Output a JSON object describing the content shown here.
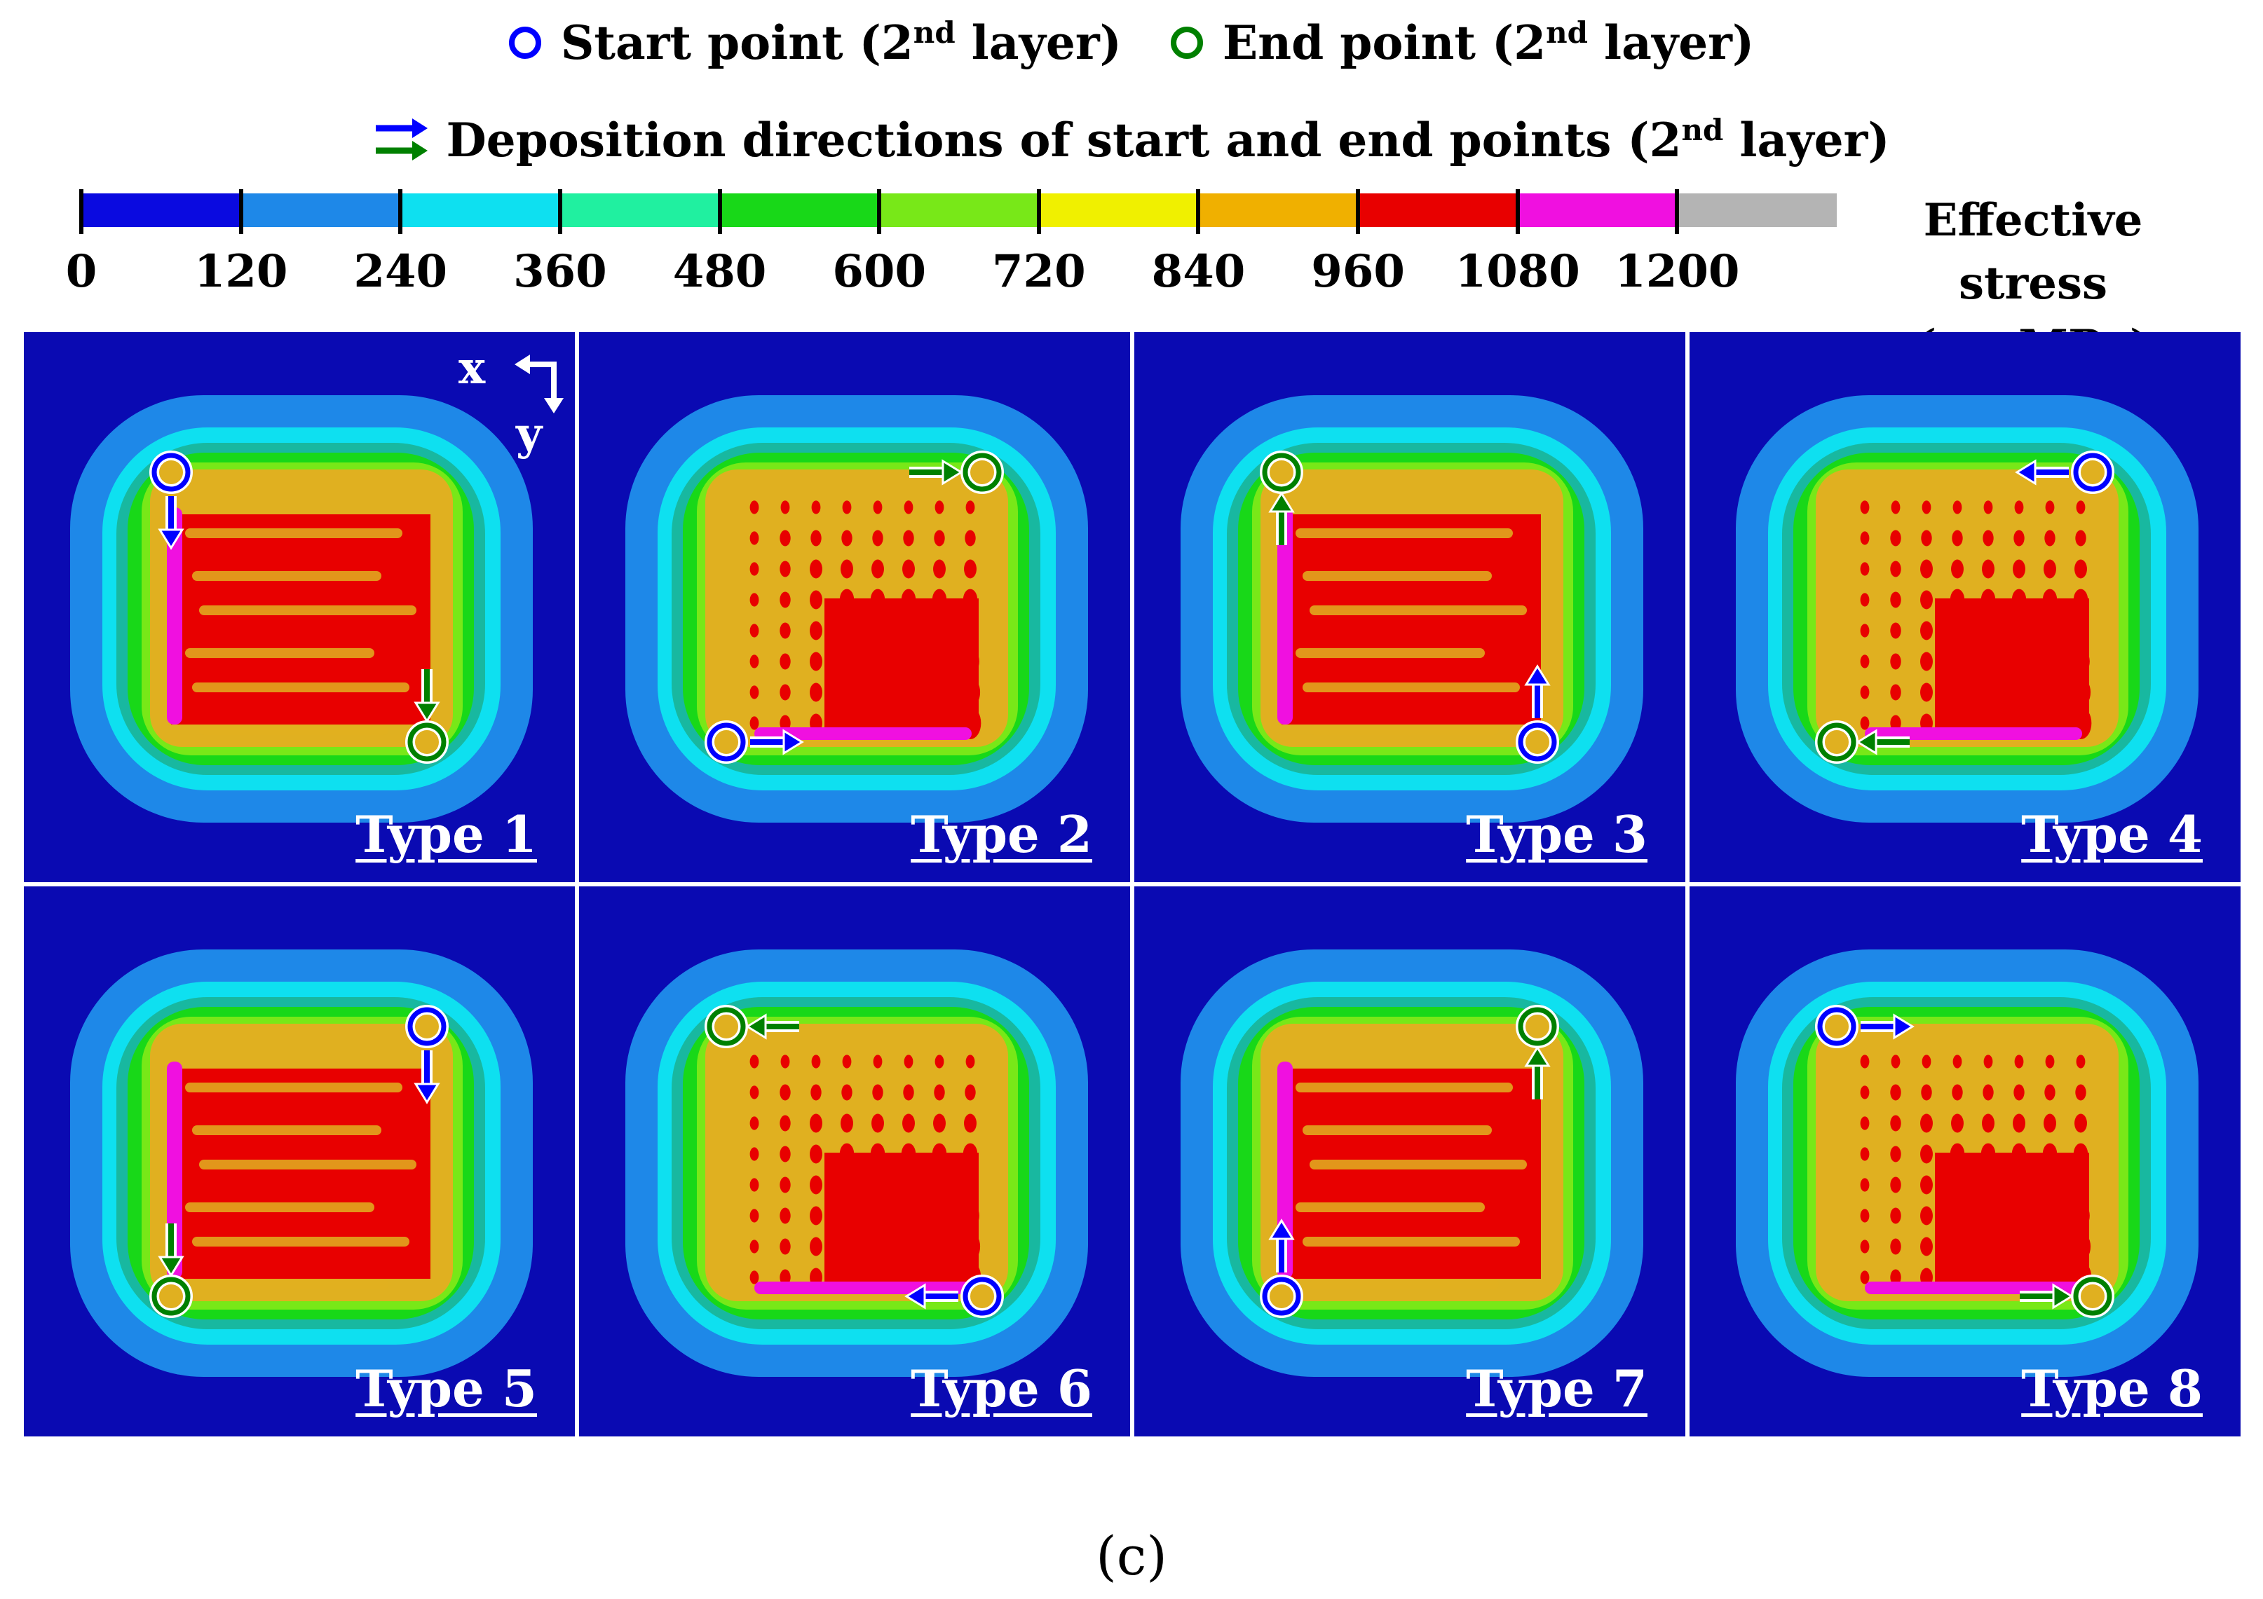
{
  "legend": {
    "start_text": "Start point (2",
    "end_text": "End point (2",
    "nd": "nd",
    "layer_suffix": " layer)",
    "direction_text": "Deposition directions of start and end points (2",
    "start_color": "#0000ff",
    "end_color": "#008000"
  },
  "colorbar": {
    "title_line1": "Effective stress",
    "title_sigma": "(σ",
    "title_sub": "e",
    "title_unit": ", MPa)",
    "ticks": [
      "0",
      "120",
      "240",
      "360",
      "480",
      "600",
      "720",
      "840",
      "960",
      "1080",
      "1200"
    ],
    "colors": [
      "#0a0ae0",
      "#1e88e8",
      "#0ee0f0",
      "#20f0a0",
      "#18d818",
      "#78e818",
      "#f0f000",
      "#f0b000",
      "#e80000",
      "#f010e0",
      "#b4b4b4"
    ]
  },
  "axes": {
    "x_label": "x",
    "y_label": "y"
  },
  "panels": [
    {
      "label": "Type 1",
      "start": "top-left",
      "start_dir": "down",
      "end": "bottom-right",
      "end_dir": "down",
      "pattern": "horizontal"
    },
    {
      "label": "Type 2",
      "start": "bottom-left",
      "start_dir": "right",
      "end": "top-right",
      "end_dir": "right",
      "pattern": "dots"
    },
    {
      "label": "Type 3",
      "start": "bottom-right",
      "start_dir": "up",
      "end": "top-left",
      "end_dir": "up",
      "pattern": "horizontal"
    },
    {
      "label": "Type 4",
      "start": "top-right",
      "start_dir": "left",
      "end": "bottom-left",
      "end_dir": "left",
      "pattern": "dots"
    },
    {
      "label": "Type 5",
      "start": "top-right",
      "start_dir": "down",
      "end": "bottom-left",
      "end_dir": "down",
      "pattern": "horizontal"
    },
    {
      "label": "Type 6",
      "start": "bottom-right",
      "start_dir": "left",
      "end": "top-left",
      "end_dir": "left",
      "pattern": "dots"
    },
    {
      "label": "Type 7",
      "start": "bottom-left",
      "start_dir": "up",
      "end": "top-right",
      "end_dir": "up",
      "pattern": "horizontal"
    },
    {
      "label": "Type 8",
      "start": "top-left",
      "start_dir": "right",
      "end": "bottom-right",
      "end_dir": "right",
      "pattern": "dots"
    }
  ],
  "caption": "(c)"
}
